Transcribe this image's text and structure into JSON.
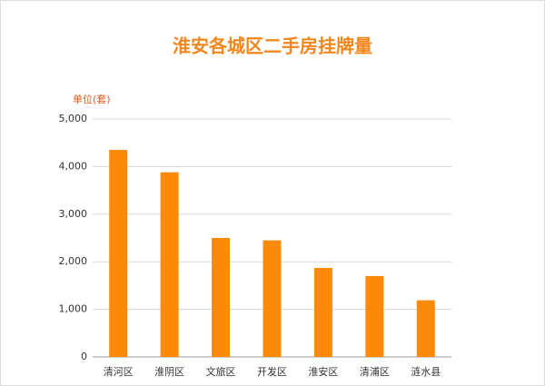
{
  "chart_data": {
    "type": "bar",
    "title": "淮安各城区二手房挂牌量",
    "y_label": "单位(套)",
    "categories": [
      "清河区",
      "淮阴区",
      "文旅区",
      "开发区",
      "淮安区",
      "清浦区",
      "涟水县"
    ],
    "values": [
      4350,
      3880,
      2500,
      2450,
      1870,
      1700,
      1190
    ],
    "color": "#fb8a0b",
    "ylim": [
      0,
      5000
    ],
    "yticks": [
      0,
      {
        "value": 1000,
        "label": "1,000"
      },
      {
        "value": 2000,
        "label": "2,000"
      },
      {
        "value": 3000,
        "label": "3,000"
      },
      {
        "value": 4000,
        "label": "4,000"
      },
      {
        "value": 5000,
        "label": "5,000"
      }
    ],
    "grid": true
  }
}
